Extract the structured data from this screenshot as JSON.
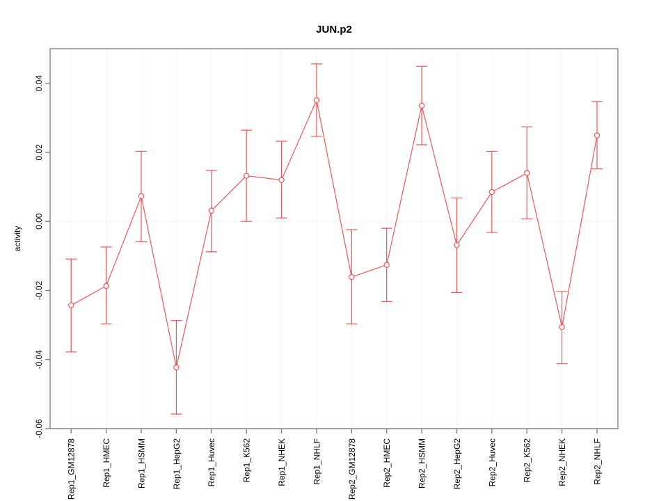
{
  "chart_data": {
    "type": "line",
    "title": "JUN.p2",
    "xlabel": "",
    "ylabel": "activity",
    "categories": [
      "Rep1_GM12878",
      "Rep1_HMEC",
      "Rep1_HSMM",
      "Rep1_HepG2",
      "Rep1_Huvec",
      "Rep1_K562",
      "Rep1_NHEK",
      "Rep1_NHLF",
      "Rep2_GM12878",
      "Rep2_HMEC",
      "Rep2_HSMM",
      "Rep2_HepG2",
      "Rep2_Huvec",
      "Rep2_K562",
      "Rep2_NHEK",
      "Rep2_NHLF"
    ],
    "series": [
      {
        "name": "activity",
        "values": [
          -0.0243,
          -0.0187,
          0.0073,
          -0.0423,
          0.0031,
          0.0132,
          0.012,
          0.0351,
          -0.0161,
          -0.0126,
          0.0335,
          -0.0069,
          0.0085,
          0.014,
          -0.0306,
          0.0249
        ],
        "error_low": [
          -0.0378,
          -0.0297,
          -0.0059,
          -0.0558,
          -0.0088,
          0.0,
          0.001,
          0.0246,
          -0.0297,
          -0.0232,
          0.0222,
          -0.0206,
          -0.0032,
          0.0007,
          -0.0412,
          0.0152
        ],
        "error_high": [
          -0.0109,
          -0.0074,
          0.0203,
          -0.0287,
          0.0148,
          0.0264,
          0.0232,
          0.0456,
          -0.0024,
          -0.002,
          0.0449,
          0.0068,
          0.0203,
          0.0274,
          -0.0203,
          0.0347
        ]
      }
    ],
    "ylim": [
      -0.06,
      0.05
    ],
    "yticks": [
      -0.06,
      -0.04,
      -0.02,
      0,
      0.02,
      0.04
    ],
    "ytick_labels": [
      "-0.06",
      "-0.04",
      "-0.02",
      "0.00",
      "0.02",
      "0.04"
    ],
    "grid": {
      "vertical_at_categories": true,
      "horizontal_at_zero": true,
      "legend": "none"
    },
    "colors": {
      "series": "#f25555",
      "axis": "#808080",
      "grid": "#d9d9d9",
      "text": "#000000",
      "point_fill": "#ffffff"
    }
  }
}
